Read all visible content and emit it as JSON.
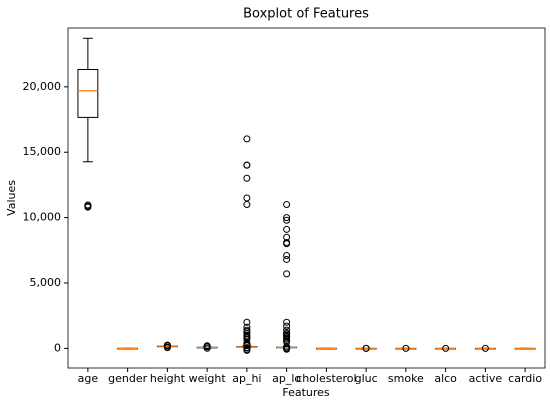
{
  "chart_data": {
    "type": "box",
    "title": "Boxplot of Features",
    "xlabel": "Features",
    "ylabel": "Values",
    "categories": [
      "age",
      "gender",
      "height",
      "weight",
      "ap_hi",
      "ap_lo",
      "cholesterol",
      "gluc",
      "smoke",
      "alco",
      "active",
      "cardio"
    ],
    "box_color": "#000000",
    "median_color": "#ff7f0e",
    "boxes": [
      {
        "low": 14270,
        "q1": 17664,
        "median": 19703,
        "q3": 21327,
        "high": 23713,
        "outliers": [
          10798,
          10859,
          10878,
          10964
        ]
      },
      {
        "low": 1,
        "q1": 1,
        "median": 1,
        "q3": 2,
        "high": 2,
        "outliers": []
      },
      {
        "low": 143,
        "q1": 159,
        "median": 165,
        "q3": 170,
        "high": 186,
        "outliers": [
          55,
          100,
          200,
          250
        ]
      },
      {
        "low": 39.5,
        "q1": 65,
        "median": 72,
        "q3": 82,
        "high": 107.5,
        "outliers": [
          10,
          120,
          150,
          200
        ]
      },
      {
        "low": 90,
        "q1": 120,
        "median": 120,
        "q3": 140,
        "high": 170,
        "outliers": [
          16020,
          14020,
          14000,
          13010,
          11500,
          11000,
          2000,
          1620,
          1400,
          1300,
          1130,
          1000,
          906,
          806,
          701,
          401,
          309,
          240,
          220,
          200,
          60,
          20,
          -100,
          -150
        ]
      },
      {
        "low": 65,
        "q1": 80,
        "median": 80,
        "q3": 90,
        "high": 105,
        "outliers": [
          11000,
          10000,
          9800,
          9100,
          8500,
          8100,
          8000,
          7100,
          6800,
          5700,
          2000,
          1700,
          1400,
          1200,
          1100,
          1000,
          900,
          800,
          700,
          570,
          500,
          150,
          40,
          0,
          -70
        ]
      },
      {
        "low": 1,
        "q1": 1,
        "median": 1,
        "q3": 2,
        "high": 3,
        "outliers": []
      },
      {
        "low": 1,
        "q1": 1,
        "median": 1,
        "q3": 1,
        "high": 1,
        "outliers": [
          2,
          3
        ]
      },
      {
        "low": 0,
        "q1": 0,
        "median": 0,
        "q3": 0,
        "high": 0,
        "outliers": [
          1
        ]
      },
      {
        "low": 0,
        "q1": 0,
        "median": 0,
        "q3": 0,
        "high": 0,
        "outliers": [
          1
        ]
      },
      {
        "low": 1,
        "q1": 1,
        "median": 1,
        "q3": 1,
        "high": 1,
        "outliers": [
          0
        ]
      },
      {
        "low": 0,
        "q1": 0,
        "median": 0,
        "q3": 1,
        "high": 1,
        "outliers": []
      }
    ],
    "ylim": [
      -1500,
      24500
    ],
    "yticks": [
      0,
      {
        "value": 5000,
        "label": "5,000"
      },
      {
        "value": 10000,
        "label": "10,000"
      },
      {
        "value": 15000,
        "label": "15,000"
      },
      {
        "value": 20000,
        "label": "20,000"
      }
    ],
    "grid": false
  }
}
